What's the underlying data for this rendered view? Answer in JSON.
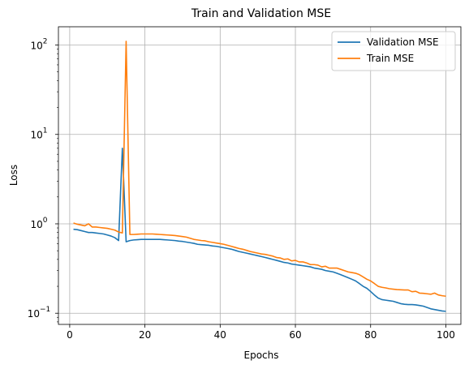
{
  "chart_data": {
    "type": "line",
    "title": "Train and Validation MSE",
    "xlabel": "Epochs",
    "ylabel": "Loss",
    "xlim": [
      -3,
      104
    ],
    "ylim": [
      0.075,
      160
    ],
    "yscale": "log",
    "grid": true,
    "legend": "top-right",
    "x_ticks": [
      {
        "value": 0,
        "label": "0"
      },
      {
        "value": 20,
        "label": "20"
      },
      {
        "value": 40,
        "label": "40"
      },
      {
        "value": 60,
        "label": "60"
      },
      {
        "value": 80,
        "label": "80"
      },
      {
        "value": 100,
        "label": "100"
      }
    ],
    "y_ticks": [
      {
        "value": 0.1,
        "base": "10",
        "exp": "−1"
      },
      {
        "value": 1,
        "base": "10",
        "exp": "0"
      },
      {
        "value": 10,
        "base": "10",
        "exp": "1"
      },
      {
        "value": 100,
        "base": "10",
        "exp": "2"
      }
    ],
    "x": [
      1,
      2,
      3,
      4,
      5,
      6,
      7,
      8,
      9,
      10,
      11,
      12,
      13,
      14,
      15,
      16,
      17,
      18,
      19,
      20,
      21,
      22,
      23,
      24,
      25,
      26,
      27,
      28,
      29,
      30,
      31,
      32,
      33,
      34,
      35,
      36,
      37,
      38,
      39,
      40,
      41,
      42,
      43,
      44,
      45,
      46,
      47,
      48,
      49,
      50,
      51,
      52,
      53,
      54,
      55,
      56,
      57,
      58,
      59,
      60,
      61,
      62,
      63,
      64,
      65,
      66,
      67,
      68,
      69,
      70,
      71,
      72,
      73,
      74,
      75,
      76,
      77,
      78,
      79,
      80,
      81,
      82,
      83,
      84,
      85,
      86,
      87,
      88,
      89,
      90,
      91,
      92,
      93,
      94,
      95,
      96,
      97,
      98,
      99,
      100
    ],
    "series": [
      {
        "name": "Validation MSE",
        "color": "#1f77b4",
        "values": [
          0.87,
          0.86,
          0.84,
          0.82,
          0.8,
          0.8,
          0.79,
          0.78,
          0.77,
          0.75,
          0.73,
          0.7,
          0.65,
          7.0,
          0.63,
          0.65,
          0.66,
          0.665,
          0.67,
          0.67,
          0.67,
          0.67,
          0.67,
          0.67,
          0.665,
          0.66,
          0.655,
          0.65,
          0.64,
          0.635,
          0.625,
          0.615,
          0.605,
          0.59,
          0.585,
          0.58,
          0.575,
          0.565,
          0.56,
          0.55,
          0.54,
          0.53,
          0.52,
          0.505,
          0.49,
          0.48,
          0.47,
          0.46,
          0.45,
          0.44,
          0.43,
          0.42,
          0.41,
          0.4,
          0.39,
          0.38,
          0.37,
          0.365,
          0.355,
          0.35,
          0.345,
          0.34,
          0.335,
          0.33,
          0.32,
          0.315,
          0.31,
          0.3,
          0.295,
          0.29,
          0.28,
          0.27,
          0.26,
          0.25,
          0.24,
          0.23,
          0.215,
          0.2,
          0.19,
          0.175,
          0.16,
          0.148,
          0.142,
          0.14,
          0.138,
          0.136,
          0.132,
          0.128,
          0.126,
          0.125,
          0.125,
          0.124,
          0.122,
          0.12,
          0.116,
          0.112,
          0.11,
          0.108,
          0.106,
          0.105
        ]
      },
      {
        "name": "Train MSE",
        "color": "#ff7f0e",
        "values": [
          1.02,
          0.99,
          0.97,
          0.95,
          1.0,
          0.92,
          0.92,
          0.91,
          0.9,
          0.89,
          0.87,
          0.85,
          0.81,
          0.79,
          110,
          0.76,
          0.76,
          0.765,
          0.77,
          0.77,
          0.77,
          0.77,
          0.765,
          0.76,
          0.755,
          0.75,
          0.745,
          0.74,
          0.73,
          0.72,
          0.71,
          0.69,
          0.67,
          0.66,
          0.65,
          0.645,
          0.63,
          0.62,
          0.61,
          0.6,
          0.59,
          0.575,
          0.56,
          0.545,
          0.53,
          0.52,
          0.505,
          0.49,
          0.48,
          0.47,
          0.46,
          0.455,
          0.445,
          0.435,
          0.42,
          0.415,
          0.4,
          0.405,
          0.385,
          0.39,
          0.375,
          0.375,
          0.365,
          0.35,
          0.35,
          0.345,
          0.33,
          0.335,
          0.32,
          0.32,
          0.32,
          0.31,
          0.3,
          0.29,
          0.285,
          0.28,
          0.27,
          0.255,
          0.24,
          0.23,
          0.215,
          0.2,
          0.195,
          0.192,
          0.188,
          0.186,
          0.184,
          0.183,
          0.182,
          0.182,
          0.174,
          0.176,
          0.168,
          0.167,
          0.165,
          0.163,
          0.168,
          0.16,
          0.157,
          0.155
        ]
      }
    ]
  }
}
